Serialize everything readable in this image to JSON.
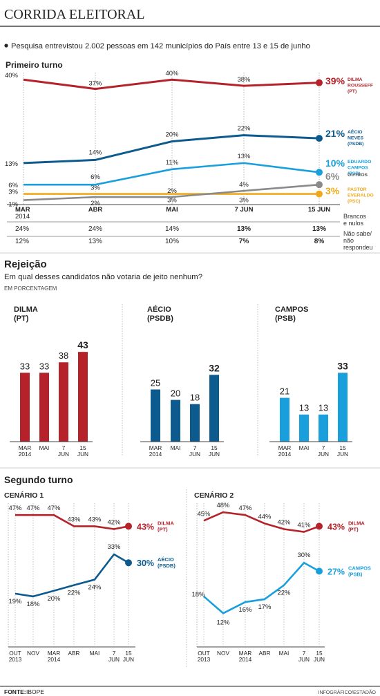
{
  "header": {
    "title": "CORRIDA ELEITORAL",
    "subtitle": "Pesquisa entrevistou 2.002 pessoas em 142 municípios do País entre 13 e 15 de junho"
  },
  "colors": {
    "dilma": "#b5222a",
    "aecio": "#0d5a8f",
    "campos": "#19a0dc",
    "outros": "#8a8a8a",
    "pastor": "#f0a81c"
  },
  "first_round": {
    "heading": "Primeiro turno",
    "periods": [
      {
        "label": "MAR",
        "sub": "2014"
      },
      {
        "label": "ABR",
        "sub": ""
      },
      {
        "label": "MAI",
        "sub": ""
      },
      {
        "label": "7 JUN",
        "sub": ""
      },
      {
        "label": "15 JUN",
        "sub": ""
      }
    ],
    "legend": [
      {
        "key": "dilma",
        "value": "39%",
        "name": [
          "DILMA",
          "ROUSSEFF",
          "(PT)"
        ]
      },
      {
        "key": "aecio",
        "value": "21%",
        "name": [
          "AÉCIO",
          "NEVES",
          "(PSDB)"
        ]
      },
      {
        "key": "campos",
        "value": "10%",
        "name": [
          "EDUARDO",
          "CAMPOS",
          "(PSB)"
        ]
      },
      {
        "key": "outros",
        "value": "6%",
        "name": [
          "OUTROS"
        ]
      },
      {
        "key": "pastor",
        "value": "3%",
        "name": [
          "PASTOR",
          "EVERALDO",
          "(PSC)"
        ]
      }
    ],
    "extra_rows": [
      {
        "label": [
          "Brancos",
          "e nulos"
        ],
        "values": [
          "24%",
          "24%",
          "14%",
          "13%",
          "13%"
        ]
      },
      {
        "label": [
          "Não sabe/",
          "não",
          "respondeu"
        ],
        "values": [
          "12%",
          "13%",
          "10%",
          "7%",
          "8%"
        ]
      }
    ]
  },
  "rejection": {
    "heading": "Rejeição",
    "question": "Em qual desses candidatos não votaria de jeito nenhum?",
    "unit": "EM PORCENTAGEM",
    "panels": [
      {
        "key": "dilma",
        "name": [
          "DILMA",
          "(PT)"
        ],
        "ticks": [
          [
            "MAR",
            "2014"
          ],
          [
            "MAI"
          ],
          [
            "7",
            "JUN"
          ],
          [
            "15",
            "JUN"
          ]
        ]
      },
      {
        "key": "aecio",
        "name": [
          "AÉCIO",
          "(PSDB)"
        ],
        "ticks": [
          [
            "MAR",
            "2014"
          ],
          [
            "MAI"
          ],
          [
            "7",
            "JUN"
          ],
          [
            "15",
            "JUN"
          ]
        ]
      },
      {
        "key": "campos",
        "name": [
          "CAMPOS",
          "(PSB)"
        ],
        "ticks": [
          [
            "MAR",
            "2014"
          ],
          [
            "MAI"
          ],
          [
            "7",
            "JUN"
          ],
          [
            "15",
            "JUN"
          ]
        ]
      }
    ]
  },
  "second_round": {
    "heading": "Segundo turno",
    "scenarios": [
      {
        "title": "CENÁRIO 1",
        "ticks": [
          [
            "OUT",
            "2013"
          ],
          [
            "NOV"
          ],
          [
            "MAR",
            "2014"
          ],
          [
            "ABR"
          ],
          [
            "MAI"
          ],
          [
            "7",
            "JUN"
          ],
          [
            "15",
            "JUN"
          ]
        ],
        "end_labels": [
          {
            "key": "dilma",
            "value": "43%",
            "name": [
              "DILMA",
              "(PT)"
            ]
          },
          {
            "key": "aecio",
            "value": "30%",
            "name": [
              "AÉCIO",
              "(PSDB)"
            ]
          }
        ]
      },
      {
        "title": "CENÁRIO 2",
        "ticks": [
          [
            "OUT",
            "2013"
          ],
          [
            "NOV"
          ],
          [
            "MAR",
            "2014"
          ],
          [
            "ABR"
          ],
          [
            "MAI"
          ],
          [
            "7",
            "JUN"
          ],
          [
            "15",
            "JUN"
          ]
        ],
        "end_labels": [
          {
            "key": "dilma",
            "value": "43%",
            "name": [
              "DILMA",
              "(PT)"
            ]
          },
          {
            "key": "campos",
            "value": "27%",
            "name": [
              "CAMPOS",
              "(PSB)"
            ]
          }
        ]
      }
    ]
  },
  "footer": {
    "source_label": "FONTE:",
    "source": "IBOPE",
    "credit": "INFOGRÁFICO/ESTADÃO"
  },
  "chart_data": [
    {
      "type": "line",
      "title": "Primeiro turno",
      "categories": [
        "MAR 2014",
        "ABR",
        "MAI",
        "7 JUN",
        "15 JUN"
      ],
      "ylim": [
        0,
        42
      ],
      "series": [
        {
          "name": "DILMA ROUSSEFF (PT)",
          "key": "dilma",
          "values": [
            40,
            37,
            40,
            38,
            39
          ],
          "labels": [
            "40%",
            "37%",
            "40%",
            "38%",
            "39%"
          ]
        },
        {
          "name": "AÉCIO NEVES (PSDB)",
          "key": "aecio",
          "values": [
            13,
            14,
            20,
            22,
            21
          ],
          "labels": [
            "13%",
            "14%",
            "20%",
            "22%",
            "21%"
          ]
        },
        {
          "name": "EDUARDO CAMPOS (PSB)",
          "key": "campos",
          "values": [
            6,
            6,
            11,
            13,
            10
          ],
          "labels": [
            "6%",
            "6%",
            "11%",
            "13%",
            "10%"
          ]
        },
        {
          "name": "OUTROS",
          "key": "outros",
          "values": [
            1,
            2,
            2,
            4,
            6
          ],
          "labels": [
            "1%",
            "2%",
            "2%",
            "4%",
            "6%"
          ]
        },
        {
          "name": "PASTOR EVERALDO (PSC)",
          "key": "pastor",
          "values": [
            3,
            3,
            3,
            3,
            3
          ],
          "labels": [
            "3%",
            "3%",
            "3%",
            "3%",
            "3%"
          ]
        }
      ]
    },
    {
      "type": "bar",
      "title": "DILMA (PT)",
      "categories": [
        "MAR 2014",
        "MAI",
        "7 JUN",
        "15 JUN"
      ],
      "values": [
        33,
        33,
        38,
        43
      ],
      "ylim": [
        0,
        45
      ]
    },
    {
      "type": "bar",
      "title": "AÉCIO (PSDB)",
      "categories": [
        "MAR 2014",
        "MAI",
        "7 JUN",
        "15 JUN"
      ],
      "values": [
        25,
        20,
        18,
        32
      ],
      "ylim": [
        0,
        45
      ]
    },
    {
      "type": "bar",
      "title": "CAMPOS (PSB)",
      "categories": [
        "MAR 2014",
        "MAI",
        "7 JUN",
        "15 JUN"
      ],
      "values": [
        21,
        13,
        13,
        33
      ],
      "ylim": [
        0,
        45
      ]
    },
    {
      "type": "line",
      "title": "CENÁRIO 1",
      "categories": [
        "OUT 2013",
        "NOV",
        "MAR 2014",
        "ABR",
        "MAI",
        "7 JUN",
        "15 JUN"
      ],
      "ylim": [
        0,
        50
      ],
      "series": [
        {
          "name": "DILMA (PT)",
          "key": "dilma",
          "values": [
            47,
            47,
            47,
            43,
            43,
            42,
            43
          ],
          "labels": [
            "47%",
            "47%",
            "47%",
            "43%",
            "43%",
            "42%",
            "43%"
          ]
        },
        {
          "name": "AÉCIO (PSDB)",
          "key": "aecio",
          "values": [
            19,
            18,
            20,
            22,
            24,
            33,
            30
          ],
          "labels": [
            "19%",
            "18%",
            "20%",
            "22%",
            "24%",
            "33%",
            "30%"
          ]
        }
      ]
    },
    {
      "type": "line",
      "title": "CENÁRIO 2",
      "categories": [
        "OUT 2013",
        "NOV",
        "MAR 2014",
        "ABR",
        "MAI",
        "7 JUN",
        "15 JUN"
      ],
      "ylim": [
        0,
        50
      ],
      "series": [
        {
          "name": "DILMA (PT)",
          "key": "dilma",
          "values": [
            45,
            48,
            47,
            44,
            42,
            41,
            43
          ],
          "labels": [
            "45%",
            "48%",
            "47%",
            "44%",
            "42%",
            "41%",
            "43%"
          ]
        },
        {
          "name": "CAMPOS (PSB)",
          "key": "campos",
          "values": [
            18,
            12,
            16,
            17,
            22,
            30,
            27
          ],
          "labels": [
            "18%",
            "12%",
            "16%",
            "17%",
            "22%",
            "30%",
            "27%"
          ]
        }
      ]
    }
  ]
}
